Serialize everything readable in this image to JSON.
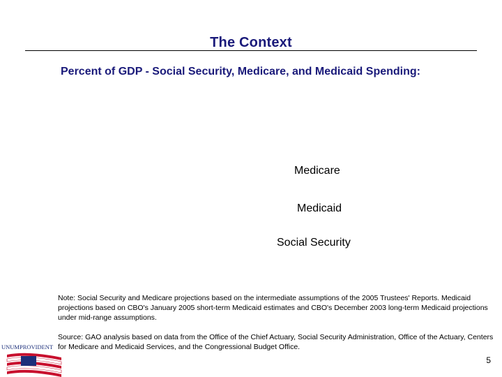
{
  "slide": {
    "title": "The Context",
    "subtitle": "Percent of GDP -  Social Security, Medicare, and Medicaid Spending:",
    "series_labels": {
      "medicare": "Medicare",
      "medicaid": "Medicaid",
      "social_security": "Social Security"
    },
    "note": "Note:  Social Security and Medicare projections based on the intermediate assumptions of the 2005 Trustees' Reports. Medicaid projections based on CBO's January 2005 short-term Medicaid estimates and CBO's December 2003 long-term Medicaid projections under mid-range assumptions.",
    "source": "Source:  GAO analysis based on data from the Office of the Chief Actuary, Social Security Administration, Office of the Actuary, Centers for Medicare and Medicaid Services, and the Congressional Budget Office.",
    "logo_text": "UNUMPROVIDENT",
    "page_number": "5"
  },
  "colors": {
    "title": "#1a1a7a",
    "logo_blue": "#1c2f7a",
    "logo_red": "#c8102e"
  }
}
